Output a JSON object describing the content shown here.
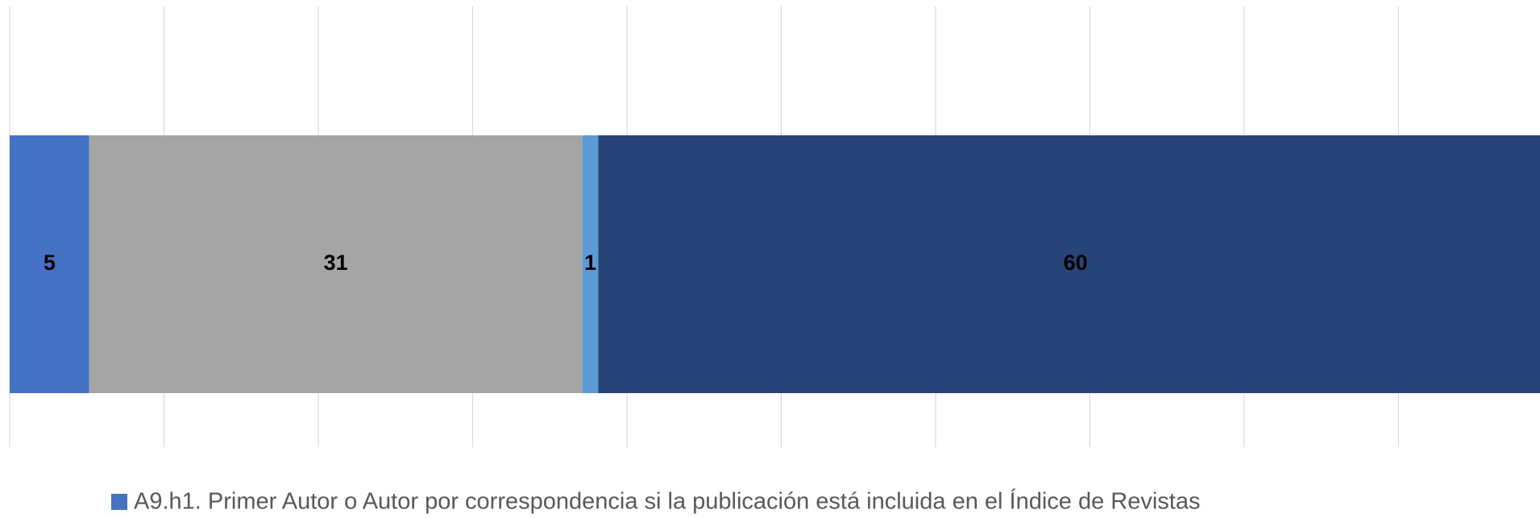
{
  "chart_data": {
    "type": "stacked-bar-horizontal",
    "categories": [
      null
    ],
    "series": [
      {
        "name": "A9.h1. Primer Autor o Autor por correspondencia si la publicación está incluida en el Índice de Revistas",
        "color": "#4472c4",
        "values": [
          5
        ]
      },
      {
        "color": "#a5a5a5",
        "values": [
          31
        ]
      },
      {
        "color": "#5b9bd5",
        "values": [
          1
        ]
      },
      {
        "color": "#264478",
        "values": [
          60
        ]
      }
    ],
    "xlim": [
      0,
      96.2
    ],
    "xticks": [
      0,
      9.7,
      19.4,
      29.1,
      38.8,
      48.5,
      58.2,
      67.9,
      77.6,
      87.3
    ],
    "grid": true,
    "legend": "bottom"
  }
}
